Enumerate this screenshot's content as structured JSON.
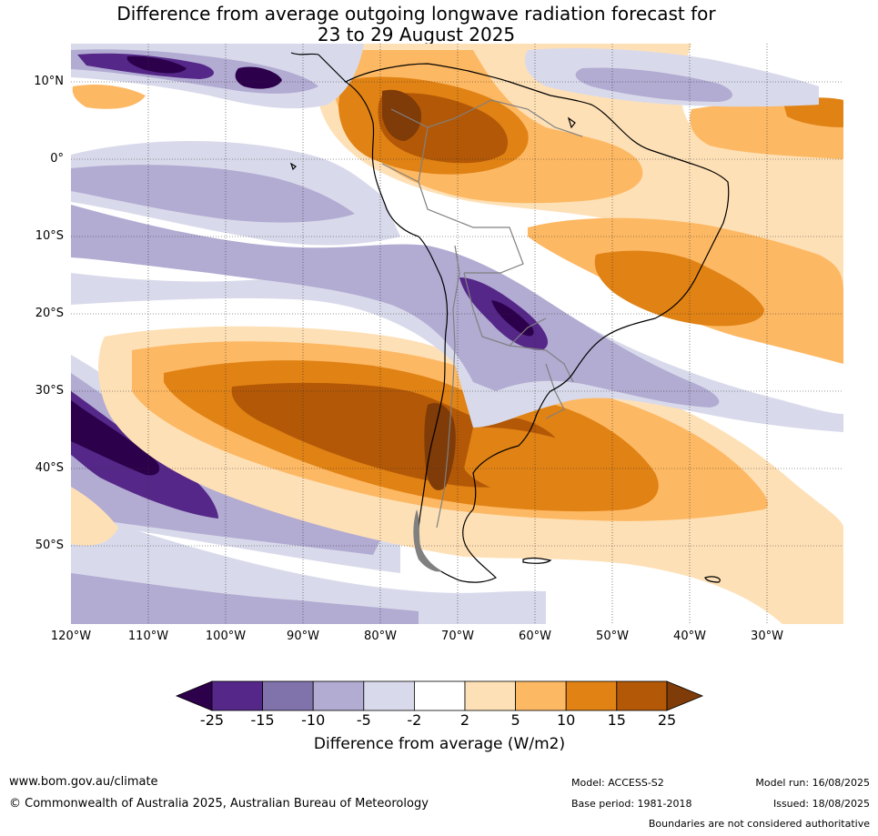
{
  "title": {
    "line1": "Difference from average outgoing longwave radiation forecast for",
    "line2": "23 to 29 August 2025"
  },
  "map": {
    "lon_labels": [
      "120°W",
      "110°W",
      "100°W",
      "90°W",
      "80°W",
      "70°W",
      "60°W",
      "50°W",
      "40°W",
      "30°W"
    ],
    "lat_labels": [
      "10°N",
      "0°",
      "10°S",
      "20°S",
      "30°S",
      "40°S",
      "50°S"
    ],
    "colors": {
      "below_-25": "#2d004b",
      "-25_-15": "#542788",
      "-15_-10": "#8073ac",
      "-10_-5": "#b2abd2",
      "-5_-2": "#d8daeb",
      "-2_2": "#ffffff",
      "2_5": "#fee0b6",
      "5_10": "#fdb863",
      "10_15": "#e08214",
      "15_25": "#b35806",
      "above_25": "#7f3b08",
      "coast": "#000000",
      "borders": "#808080"
    }
  },
  "colorbar": {
    "ticks": [
      "-25",
      "-15",
      "-10",
      "-5",
      "-2",
      "2",
      "5",
      "10",
      "15",
      "25"
    ],
    "label": "Difference from average (W/m2)"
  },
  "footer": {
    "site": "www.bom.gov.au/climate",
    "copyright": "© Commonwealth of Australia 2025, Australian Bureau of Meteorology",
    "model": "Model: ACCESS-S2",
    "base_period": "Base period: 1981-2018",
    "model_run": "Model run: 16/08/2025",
    "issued": "Issued: 18/08/2025",
    "boundaries": "Boundaries are not considered authoritative"
  }
}
